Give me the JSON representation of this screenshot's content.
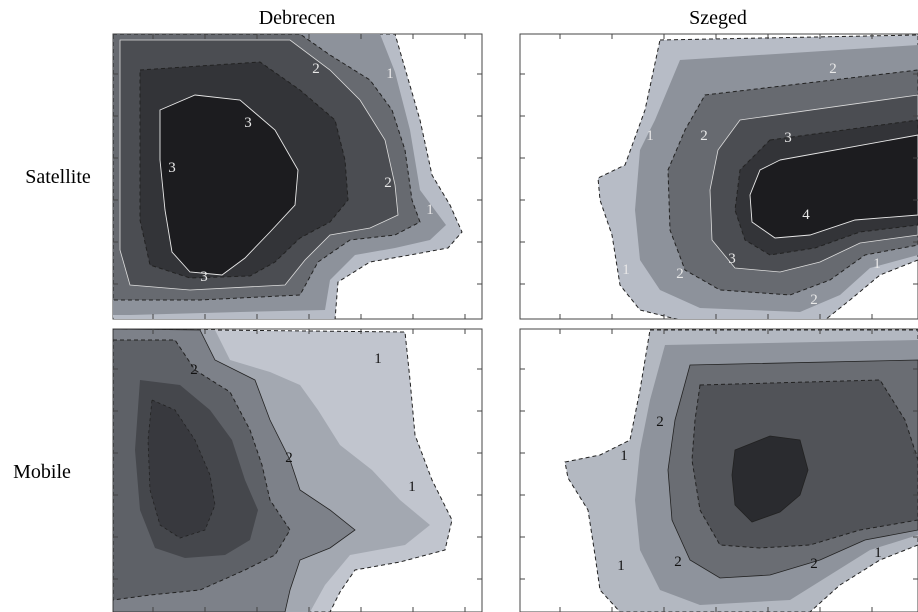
{
  "columns": [
    "Debrecen",
    "Szeged"
  ],
  "rows": [
    "Satellite",
    "Mobile"
  ],
  "panels": {
    "deb_sat": {
      "labels": [
        "3",
        "3",
        "3",
        "2",
        "2",
        "1",
        "1"
      ]
    },
    "sze_sat": {
      "labels": [
        "2",
        "2",
        "3",
        "1",
        "4",
        "3",
        "1",
        "2",
        "2",
        "1"
      ]
    },
    "deb_mob": {
      "labels": [
        "2",
        "2",
        "1",
        "1"
      ]
    },
    "sze_mob": {
      "labels": [
        "2",
        "1",
        "2",
        "1",
        "2",
        "1"
      ]
    }
  }
}
